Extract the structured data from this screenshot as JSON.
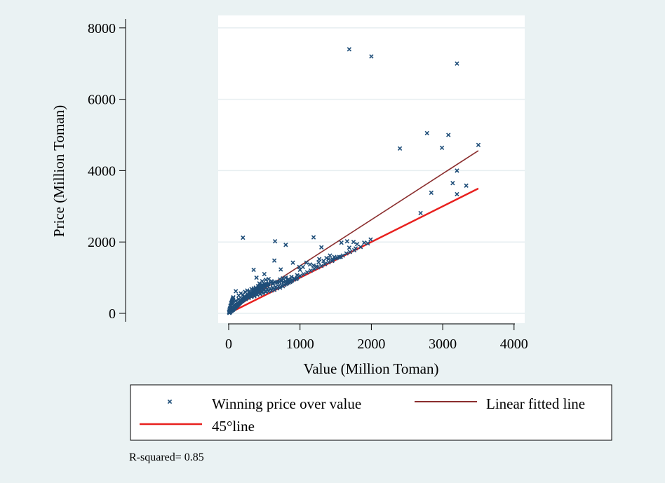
{
  "chart_data": {
    "type": "scatter",
    "xlabel": "Value (Million Toman)",
    "ylabel": "Price (Million Toman)",
    "xlim": [
      -150,
      4000
    ],
    "ylim": [
      -150,
      8300
    ],
    "x_ticks": [
      0,
      1000,
      2000,
      3000,
      4000
    ],
    "y_ticks": [
      0,
      2000,
      4000,
      6000,
      8000
    ],
    "x_tick_labels": [
      "0",
      "1000",
      "2000",
      "3000",
      "4000"
    ],
    "y_tick_labels": [
      "0",
      "2000",
      "4000",
      "6000",
      "8000"
    ],
    "grid": "horizontal",
    "legend_placement": "bottom",
    "note": "R-squared= 0.85",
    "colors": {
      "markers": "#1f4e79",
      "fitted": "#8b2e2e",
      "diagonal": "#e8201e",
      "plot_background": "#ffffff",
      "page_background": "#eaf2f3"
    },
    "series": [
      {
        "name": "Winning price over value",
        "kind": "scatter",
        "marker": "x",
        "points": [
          [
            1690,
            7400
          ],
          [
            2000,
            7200
          ],
          [
            3200,
            7000
          ],
          [
            2780,
            5050
          ],
          [
            3080,
            5000
          ],
          [
            2400,
            4620
          ],
          [
            2990,
            4640
          ],
          [
            3500,
            4720
          ],
          [
            3200,
            4000
          ],
          [
            3140,
            3650
          ],
          [
            3330,
            3580
          ],
          [
            2840,
            3380
          ],
          [
            3200,
            3340
          ],
          [
            2690,
            2810
          ],
          [
            200,
            2120
          ],
          [
            1190,
            2130
          ],
          [
            650,
            2020
          ],
          [
            800,
            1920
          ],
          [
            1660,
            2020
          ],
          [
            1750,
            2000
          ],
          [
            1990,
            2070
          ],
          [
            1800,
            1940
          ],
          [
            1580,
            1980
          ],
          [
            1300,
            1850
          ],
          [
            1690,
            1840
          ],
          [
            1420,
            1620
          ],
          [
            1480,
            1580
          ],
          [
            1370,
            1550
          ],
          [
            1520,
            1560
          ],
          [
            1570,
            1580
          ],
          [
            1900,
            1980
          ],
          [
            1780,
            1820
          ],
          [
            350,
            1220
          ],
          [
            390,
            1000
          ],
          [
            730,
            1230
          ],
          [
            500,
            1100
          ],
          [
            640,
            1480
          ],
          [
            900,
            1420
          ],
          [
            1090,
            1420
          ],
          [
            1140,
            1370
          ],
          [
            1270,
            1520
          ],
          [
            1190,
            1340
          ],
          [
            990,
            1300
          ],
          [
            1230,
            1310
          ],
          [
            1260,
            1430
          ],
          [
            1000,
            1220
          ],
          [
            1040,
            1300
          ],
          [
            1330,
            1470
          ],
          [
            1400,
            1520
          ],
          [
            1460,
            1500
          ],
          [
            960,
            1070
          ],
          [
            430,
            840
          ],
          [
            470,
            900
          ],
          [
            520,
            940
          ],
          [
            560,
            960
          ],
          [
            600,
            900
          ],
          [
            620,
            820
          ],
          [
            680,
            880
          ],
          [
            720,
            950
          ],
          [
            760,
            980
          ],
          [
            800,
            1000
          ],
          [
            840,
            960
          ],
          [
            880,
            1020
          ],
          [
            920,
            980
          ],
          [
            960,
            1000
          ],
          [
            1000,
            1050
          ],
          [
            1050,
            1100
          ],
          [
            1100,
            1150
          ],
          [
            1150,
            1200
          ],
          [
            1200,
            1250
          ],
          [
            1250,
            1290
          ],
          [
            1300,
            1330
          ],
          [
            1350,
            1380
          ],
          [
            1400,
            1430
          ],
          [
            1450,
            1470
          ],
          [
            1500,
            1540
          ],
          [
            1550,
            1580
          ],
          [
            1600,
            1620
          ],
          [
            1650,
            1680
          ],
          [
            1700,
            1720
          ],
          [
            1760,
            1770
          ],
          [
            1850,
            1860
          ],
          [
            1950,
            1960
          ],
          [
            100,
            620
          ],
          [
            140,
            500
          ],
          [
            170,
            560
          ],
          [
            200,
            520
          ],
          [
            230,
            600
          ],
          [
            260,
            640
          ],
          [
            290,
            620
          ],
          [
            320,
            680
          ],
          [
            350,
            700
          ],
          [
            380,
            720
          ],
          [
            410,
            760
          ],
          [
            440,
            770
          ],
          [
            470,
            800
          ],
          [
            500,
            820
          ],
          [
            530,
            820
          ],
          [
            560,
            840
          ],
          [
            590,
            860
          ],
          [
            620,
            860
          ],
          [
            650,
            870
          ],
          [
            680,
            860
          ],
          [
            710,
            880
          ],
          [
            740,
            900
          ],
          [
            770,
            880
          ],
          [
            800,
            900
          ],
          [
            830,
            900
          ],
          [
            860,
            920
          ],
          [
            890,
            930
          ],
          [
            920,
            950
          ],
          [
            950,
            960
          ],
          [
            60,
            300
          ],
          [
            80,
            250
          ],
          [
            100,
            350
          ],
          [
            120,
            300
          ],
          [
            140,
            400
          ],
          [
            160,
            350
          ],
          [
            180,
            420
          ],
          [
            200,
            380
          ],
          [
            220,
            450
          ],
          [
            240,
            400
          ],
          [
            260,
            480
          ],
          [
            280,
            430
          ],
          [
            300,
            500
          ],
          [
            320,
            460
          ],
          [
            340,
            540
          ],
          [
            360,
            480
          ],
          [
            380,
            560
          ],
          [
            400,
            520
          ],
          [
            420,
            600
          ],
          [
            440,
            540
          ],
          [
            460,
            620
          ],
          [
            480,
            560
          ],
          [
            500,
            660
          ],
          [
            520,
            600
          ],
          [
            540,
            680
          ],
          [
            560,
            620
          ],
          [
            580,
            700
          ],
          [
            600,
            640
          ],
          [
            620,
            720
          ],
          [
            640,
            660
          ],
          [
            660,
            740
          ],
          [
            680,
            700
          ],
          [
            700,
            760
          ],
          [
            720,
            720
          ],
          [
            740,
            780
          ],
          [
            760,
            760
          ],
          [
            780,
            800
          ],
          [
            800,
            820
          ],
          [
            820,
            840
          ],
          [
            840,
            860
          ],
          [
            860,
            880
          ],
          [
            880,
            900
          ],
          [
            5,
            40
          ],
          [
            10,
            80
          ],
          [
            15,
            120
          ],
          [
            20,
            150
          ],
          [
            25,
            200
          ],
          [
            30,
            230
          ],
          [
            35,
            280
          ],
          [
            40,
            300
          ],
          [
            45,
            330
          ],
          [
            50,
            360
          ],
          [
            55,
            390
          ],
          [
            60,
            420
          ],
          [
            65,
            450
          ],
          [
            10,
            10
          ],
          [
            20,
            30
          ],
          [
            30,
            60
          ],
          [
            40,
            70
          ],
          [
            50,
            90
          ],
          [
            60,
            100
          ],
          [
            70,
            120
          ],
          [
            80,
            140
          ],
          [
            90,
            160
          ],
          [
            100,
            180
          ],
          [
            110,
            200
          ],
          [
            120,
            220
          ],
          [
            130,
            240
          ],
          [
            140,
            260
          ],
          [
            150,
            280
          ],
          [
            160,
            300
          ],
          [
            170,
            320
          ],
          [
            180,
            340
          ],
          [
            190,
            350
          ],
          [
            200,
            370
          ],
          [
            210,
            390
          ],
          [
            220,
            410
          ],
          [
            230,
            420
          ],
          [
            240,
            440
          ],
          [
            250,
            460
          ],
          [
            260,
            470
          ],
          [
            270,
            490
          ],
          [
            280,
            500
          ],
          [
            290,
            520
          ],
          [
            300,
            530
          ],
          [
            310,
            540
          ],
          [
            320,
            560
          ],
          [
            330,
            570
          ],
          [
            340,
            590
          ],
          [
            350,
            600
          ],
          [
            360,
            610
          ],
          [
            370,
            630
          ],
          [
            380,
            640
          ],
          [
            390,
            650
          ],
          [
            400,
            660
          ],
          [
            410,
            670
          ],
          [
            420,
            690
          ],
          [
            430,
            700
          ],
          [
            440,
            710
          ],
          [
            450,
            720
          ],
          [
            460,
            730
          ],
          [
            470,
            740
          ],
          [
            480,
            760
          ],
          [
            490,
            770
          ],
          [
            500,
            780
          ],
          [
            510,
            790
          ],
          [
            520,
            800
          ],
          [
            530,
            800
          ],
          [
            540,
            810
          ],
          [
            550,
            820
          ]
        ]
      },
      {
        "name": "Linear fitted line",
        "kind": "line",
        "points": [
          [
            0,
            40
          ],
          [
            3500,
            4560
          ]
        ]
      },
      {
        "name": "45°line",
        "kind": "line",
        "points": [
          [
            0,
            0
          ],
          [
            3500,
            3500
          ]
        ]
      }
    ]
  }
}
